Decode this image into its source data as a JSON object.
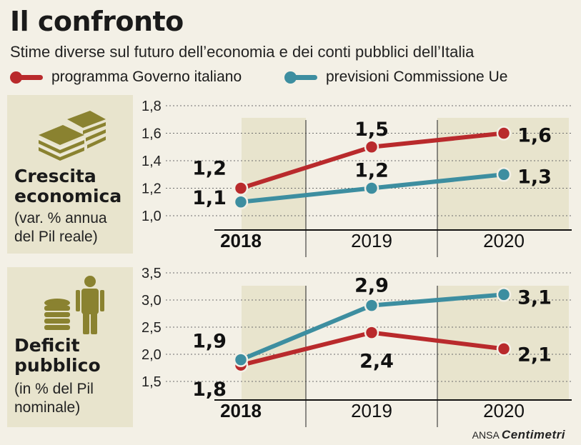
{
  "title": "Il confronto",
  "subtitle": "Stime diverse sul futuro dell’economia e dei conti pubblici dell’Italia",
  "legend": {
    "gov": "programma Governo italiano",
    "ue": "previsioni Commissione Ue"
  },
  "colors": {
    "gov": "#b92a2c",
    "ue": "#3d8ea0",
    "band": "#e8e4cd",
    "bg": "#f3f0e6"
  },
  "panels": {
    "growth": {
      "title": "Crescita\neconomica",
      "subtitle": "(var. % annua\ndel Pil reale)",
      "icon": "money-stack-icon"
    },
    "deficit": {
      "title": "Deficit\npubblico",
      "subtitle": "(in % del Pil\nnominale)",
      "icon": "coins-person-icon"
    }
  },
  "brand": {
    "prefix": "ANSA",
    "name": "Centimetri"
  },
  "chart_data": [
    {
      "type": "line",
      "title": "Crescita economica",
      "categories": [
        "2018",
        "2019",
        "2020"
      ],
      "ylim": [
        1.0,
        1.8
      ],
      "yticks": [
        "1,8",
        "1,6",
        "1,4",
        "1,2",
        "1,0"
      ],
      "series": [
        {
          "name": "programma Governo italiano",
          "values": [
            1.2,
            1.5,
            1.6
          ],
          "labels": [
            "1,2",
            "1,5",
            "1,6"
          ]
        },
        {
          "name": "previsioni Commissione Ue",
          "values": [
            1.1,
            1.2,
            1.3
          ],
          "labels": [
            "1,1",
            "1,2",
            "1,3"
          ]
        }
      ]
    },
    {
      "type": "line",
      "title": "Deficit pubblico",
      "categories": [
        "2018",
        "2019",
        "2020"
      ],
      "ylim": [
        1.5,
        3.5
      ],
      "yticks": [
        "3,5",
        "3,0",
        "2,5",
        "2,0",
        "1,5"
      ],
      "series": [
        {
          "name": "programma Governo italiano",
          "values": [
            1.8,
            2.4,
            2.1
          ],
          "labels": [
            "1,8",
            "2,4",
            "2,1"
          ]
        },
        {
          "name": "previsioni Commissione Ue",
          "values": [
            1.9,
            2.9,
            3.1
          ],
          "labels": [
            "1,9",
            "2,9",
            "3,1"
          ]
        }
      ]
    }
  ]
}
